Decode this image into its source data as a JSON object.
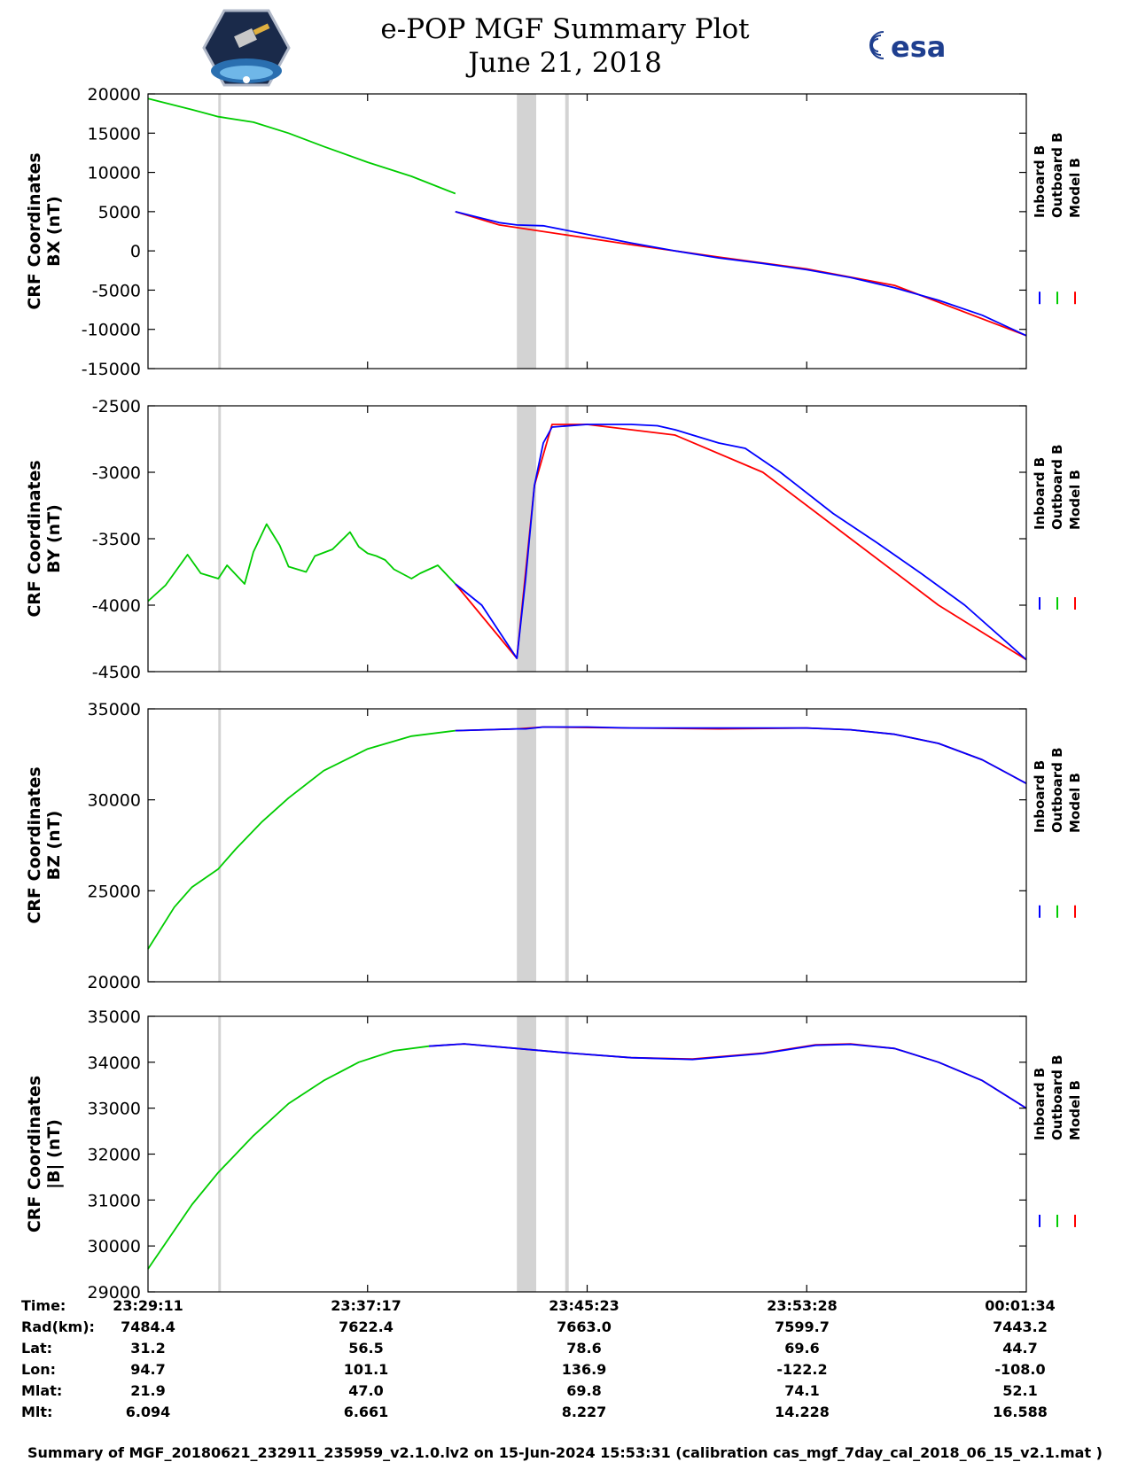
{
  "header": {
    "title": "e-POP MGF Summary Plot",
    "date": "June 21, 2018",
    "esa_logo_text": "esa"
  },
  "colors": {
    "inboard": "#0000ff",
    "outboard": "#00cc00",
    "model": "#ff0000",
    "shade": "#d3d3d3"
  },
  "chart_data": [
    {
      "type": "line",
      "ylabel": [
        "CRF Coordinates",
        "BX (nT)"
      ],
      "ylim": [
        -15000,
        20000
      ],
      "yticks": [
        20000,
        15000,
        10000,
        5000,
        0,
        -5000,
        -10000,
        -15000
      ],
      "legend": [
        "Inboard B",
        "Outboard B",
        "Model B"
      ],
      "series": [
        {
          "name": "Outboard B",
          "x": [
            0,
            0.05,
            0.08,
            0.12,
            0.16,
            0.2,
            0.25,
            0.3,
            0.35
          ],
          "y": [
            19400,
            18000,
            17100,
            16400,
            15000,
            13300,
            11300,
            9500,
            7300
          ]
        },
        {
          "name": "Model B",
          "x": [
            0.35,
            0.4,
            0.55,
            0.65,
            0.75,
            0.85,
            1.0
          ],
          "y": [
            5000,
            3300,
            800,
            -800,
            -2300,
            -4400,
            -10800
          ]
        },
        {
          "name": "Inboard B",
          "x": [
            0.35,
            0.4,
            0.42,
            0.45,
            0.5,
            0.55,
            0.6,
            0.65,
            0.7,
            0.75,
            0.8,
            0.85,
            0.9,
            0.95,
            1.0
          ],
          "y": [
            5000,
            3600,
            3300,
            3200,
            2100,
            1000,
            0,
            -900,
            -1600,
            -2400,
            -3400,
            -4700,
            -6300,
            -8200,
            -10800
          ]
        }
      ]
    },
    {
      "type": "line",
      "ylabel": [
        "CRF Coordinates",
        "BY (nT)"
      ],
      "ylim": [
        -4500,
        -2500
      ],
      "yticks": [
        -2500,
        -3000,
        -3500,
        -4000,
        -4500
      ],
      "legend": [
        "Inboard B",
        "Outboard B",
        "Model B"
      ],
      "series": [
        {
          "name": "Outboard B",
          "x": [
            0,
            0.02,
            0.045,
            0.06,
            0.08,
            0.09,
            0.11,
            0.12,
            0.135,
            0.15,
            0.16,
            0.18,
            0.19,
            0.21,
            0.23,
            0.24,
            0.25,
            0.26,
            0.27,
            0.28,
            0.3,
            0.31,
            0.33,
            0.35
          ],
          "y": [
            -3970,
            -3850,
            -3620,
            -3760,
            -3800,
            -3700,
            -3840,
            -3600,
            -3390,
            -3550,
            -3710,
            -3750,
            -3630,
            -3580,
            -3450,
            -3560,
            -3610,
            -3630,
            -3660,
            -3730,
            -3800,
            -3760,
            -3700,
            -3840
          ]
        },
        {
          "name": "Model B",
          "x": [
            0.35,
            0.42,
            0.44,
            0.46,
            0.5,
            0.6,
            0.7,
            0.8,
            0.9,
            1.0
          ],
          "y": [
            -3840,
            -4400,
            -3100,
            -2640,
            -2640,
            -2720,
            -3000,
            -3500,
            -4000,
            -4410
          ]
        },
        {
          "name": "Inboard B",
          "x": [
            0.35,
            0.38,
            0.41,
            0.42,
            0.43,
            0.44,
            0.45,
            0.46,
            0.5,
            0.55,
            0.58,
            0.6,
            0.62,
            0.65,
            0.68,
            0.72,
            0.78,
            0.83,
            0.88,
            0.93,
            1.0
          ],
          "y": [
            -3840,
            -4000,
            -4300,
            -4400,
            -3800,
            -3100,
            -2780,
            -2660,
            -2640,
            -2640,
            -2650,
            -2680,
            -2720,
            -2780,
            -2820,
            -3000,
            -3310,
            -3530,
            -3760,
            -4000,
            -4410
          ]
        }
      ]
    },
    {
      "type": "line",
      "ylabel": [
        "CRF Coordinates",
        "BZ (nT)"
      ],
      "ylim": [
        20000,
        35000
      ],
      "yticks": [
        35000,
        30000,
        25000,
        20000
      ],
      "legend": [
        "Inboard B",
        "Outboard B",
        "Model B"
      ],
      "series": [
        {
          "name": "Outboard B",
          "x": [
            0,
            0.03,
            0.05,
            0.08,
            0.1,
            0.13,
            0.16,
            0.2,
            0.25,
            0.3,
            0.35
          ],
          "y": [
            21800,
            24100,
            25200,
            26200,
            27300,
            28800,
            30100,
            31600,
            32800,
            33500,
            33800
          ]
        },
        {
          "name": "Model B",
          "x": [
            0.35,
            0.42,
            0.45,
            0.55,
            0.65,
            0.75,
            0.8,
            0.85,
            0.9,
            0.95,
            1.0
          ],
          "y": [
            33800,
            33900,
            34000,
            33950,
            33900,
            33950,
            33850,
            33600,
            33100,
            32200,
            30900
          ]
        },
        {
          "name": "Inboard B",
          "x": [
            0.35,
            0.42,
            0.43,
            0.45,
            0.5,
            0.55,
            0.6,
            0.65,
            0.7,
            0.75,
            0.8,
            0.85,
            0.9,
            0.95,
            1.0
          ],
          "y": [
            33800,
            33900,
            33900,
            34000,
            34000,
            33950,
            33950,
            33950,
            33950,
            33950,
            33850,
            33600,
            33100,
            32200,
            30900
          ]
        }
      ]
    },
    {
      "type": "line",
      "ylabel": [
        "CRF Coordinates",
        "|B| (nT)"
      ],
      "ylim": [
        29000,
        35000
      ],
      "yticks": [
        35000,
        34000,
        33000,
        32000,
        31000,
        30000,
        29000
      ],
      "legend": [
        "Inboard B",
        "Outboard B",
        "Model B"
      ],
      "series": [
        {
          "name": "Outboard B",
          "x": [
            0,
            0.05,
            0.08,
            0.12,
            0.16,
            0.2,
            0.24,
            0.28,
            0.32
          ],
          "y": [
            29500,
            30900,
            31600,
            32400,
            33100,
            33600,
            34000,
            34250,
            34350
          ]
        },
        {
          "name": "Model B",
          "x": [
            0.32,
            0.36,
            0.42,
            0.48,
            0.55,
            0.62,
            0.7,
            0.76,
            0.8,
            0.85,
            0.9,
            0.95,
            1.0
          ],
          "y": [
            34350,
            34400,
            34300,
            34200,
            34100,
            34070,
            34200,
            34380,
            34400,
            34300,
            34000,
            33600,
            33000
          ]
        },
        {
          "name": "Inboard B",
          "x": [
            0.32,
            0.36,
            0.42,
            0.48,
            0.55,
            0.62,
            0.7,
            0.76,
            0.8,
            0.85,
            0.9,
            0.95,
            1.0
          ],
          "y": [
            34350,
            34400,
            34300,
            34200,
            34100,
            34060,
            34190,
            34370,
            34390,
            34300,
            34000,
            33600,
            33000
          ]
        }
      ]
    }
  ],
  "shaded_intervals": [
    [
      0.08,
      0.083
    ],
    [
      0.42,
      0.442
    ],
    [
      0.475,
      0.479
    ]
  ],
  "time_table": {
    "row_labels": [
      "Time:",
      "Rad(km):",
      "Lat:",
      "Lon:",
      "Mlat:",
      "Mlt:"
    ],
    "columns": [
      {
        "time": "23:29:11",
        "rad": "7484.4",
        "lat": "31.2",
        "lon": "94.7",
        "mlat": "21.9",
        "mlt": "6.094"
      },
      {
        "time": "23:37:17",
        "rad": "7622.4",
        "lat": "56.5",
        "lon": "101.1",
        "mlat": "47.0",
        "mlt": "6.661"
      },
      {
        "time": "23:45:23",
        "rad": "7663.0",
        "lat": "78.6",
        "lon": "136.9",
        "mlat": "69.8",
        "mlt": "8.227"
      },
      {
        "time": "23:53:28",
        "rad": "7599.7",
        "lat": "69.6",
        "lon": "-122.2",
        "mlat": "74.1",
        "mlt": "14.228"
      },
      {
        "time": "00:01:34",
        "rad": "7443.2",
        "lat": "44.7",
        "lon": "-108.0",
        "mlat": "52.1",
        "mlt": "16.588"
      }
    ]
  },
  "footer": "Summary of MGF_20180621_232911_235959_v2.1.0.lv2 on 15-Jun-2024 15:53:31 (calibration cas_mgf_7day_cal_2018_06_15_v2.1.mat )"
}
